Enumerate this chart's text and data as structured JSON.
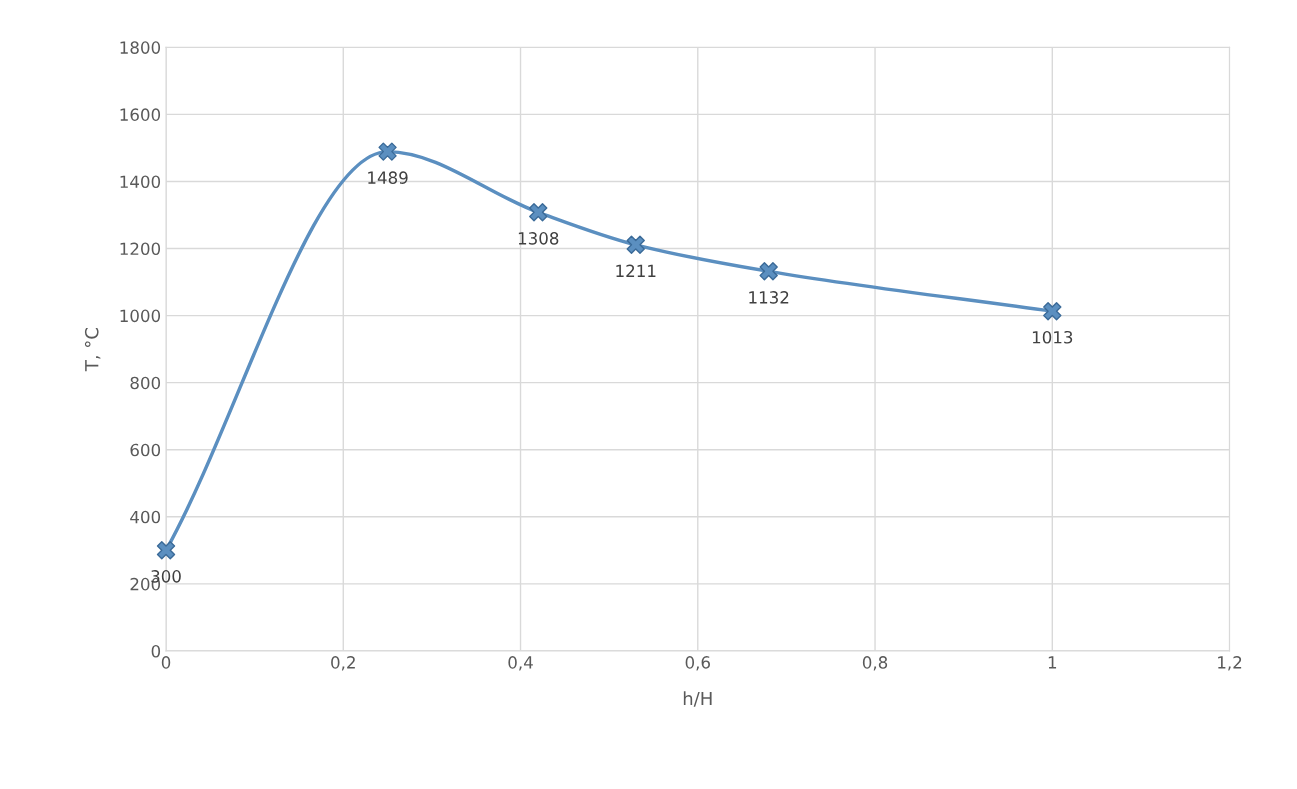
{
  "chart_data": {
    "type": "line",
    "xlabel": "h/H",
    "ylabel": "T, °C",
    "x": [
      0,
      0.25,
      0.42,
      0.53,
      0.68,
      1
    ],
    "series": [
      {
        "color": "#5b8fc0",
        "values": [
          300,
          1489,
          1308,
          1211,
          1132,
          1013
        ]
      }
    ],
    "xlim": [
      0,
      1.2
    ],
    "xticks": [
      0,
      {
        "value": 0.2,
        "label": "0,2"
      },
      {
        "value": 0.4,
        "label": "0,4"
      },
      {
        "value": 0.6,
        "label": "0,6"
      },
      {
        "value": 0.8,
        "label": "0,8"
      },
      1,
      {
        "value": 1.2,
        "label": "1,2"
      }
    ],
    "ylim": [
      0,
      1800
    ],
    "yticks": [
      0,
      200,
      400,
      600,
      800,
      1000,
      1200,
      1400,
      1600,
      1800
    ],
    "grid": true,
    "marker": "cross",
    "line_style": "solid",
    "data_labels": true,
    "legend": false
  }
}
